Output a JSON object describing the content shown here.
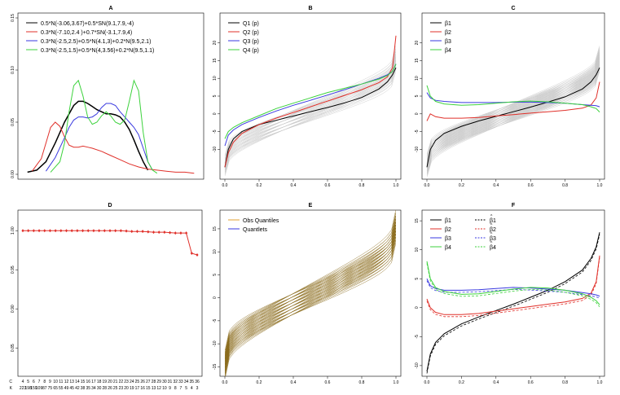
{
  "figure": {
    "title": "Six-panel figure A-F"
  },
  "chart_data": [
    {
      "panel": "A",
      "type": "line",
      "title": "A",
      "xlim": [
        -15,
        23
      ],
      "ylim": [
        0,
        0.15
      ],
      "xticks": [],
      "yticks": [
        "0.00",
        "0.05",
        "0.10",
        "0.15"
      ],
      "legend": [
        {
          "label": "0.5*N(-3.06,3.67)+0.5*SN(9.1,7.9,-4)",
          "color": "#000000"
        },
        {
          "label": "0.3*N(-7.10,2.4 )+0.7*SN(-3.1,7.9,4)",
          "color": "#e0302a"
        },
        {
          "label": "0.3*N(-2.5,2.5)+0.5*N(4.1,3)+0.2*N(9.5,2.1)",
          "color": "#3a3ae0"
        },
        {
          "label": "0.3*N(-2.5,1.5)+0.5*N(4,3.56)+0.2*N(9.5,1.1)",
          "color": "#3cd23c"
        }
      ],
      "series": [
        {
          "name": "black",
          "color": "#000000",
          "x": [
            -14,
            -12,
            -10,
            -8,
            -6,
            -4,
            -3,
            -2,
            -1,
            0,
            1,
            2,
            3,
            4,
            5,
            6,
            7,
            8,
            9,
            10,
            11,
            12
          ],
          "y": [
            0.002,
            0.004,
            0.012,
            0.03,
            0.05,
            0.066,
            0.07,
            0.07,
            0.068,
            0.065,
            0.062,
            0.06,
            0.058,
            0.058,
            0.057,
            0.055,
            0.05,
            0.043,
            0.033,
            0.022,
            0.012,
            0.004
          ]
        },
        {
          "name": "red",
          "color": "#e0302a",
          "x": [
            -13,
            -11,
            -10,
            -9,
            -8,
            -7,
            -6,
            -5,
            -4,
            -3,
            -2,
            -1,
            0,
            2,
            4,
            6,
            8,
            10,
            12,
            14,
            16,
            18,
            20,
            22
          ],
          "y": [
            0.003,
            0.015,
            0.03,
            0.045,
            0.05,
            0.046,
            0.036,
            0.028,
            0.026,
            0.026,
            0.027,
            0.026,
            0.025,
            0.022,
            0.018,
            0.014,
            0.01,
            0.007,
            0.005,
            0.004,
            0.003,
            0.002,
            0.002,
            0.001
          ]
        },
        {
          "name": "blue",
          "color": "#3a3ae0",
          "x": [
            -10,
            -8,
            -6,
            -5,
            -4,
            -3,
            -2,
            -1,
            0,
            1,
            2,
            3,
            4,
            5,
            6,
            7,
            8,
            9,
            10,
            11,
            12,
            13
          ],
          "y": [
            0.003,
            0.016,
            0.035,
            0.045,
            0.052,
            0.055,
            0.055,
            0.054,
            0.055,
            0.058,
            0.064,
            0.068,
            0.068,
            0.066,
            0.06,
            0.055,
            0.05,
            0.045,
            0.038,
            0.025,
            0.012,
            0.004
          ]
        },
        {
          "name": "green",
          "color": "#3cd23c",
          "x": [
            -9,
            -7,
            -6,
            -5,
            -4,
            -3,
            -2,
            -1,
            0,
            1,
            2,
            3,
            4,
            5,
            6,
            7,
            8,
            9,
            10,
            11,
            12,
            13,
            14
          ],
          "y": [
            0.002,
            0.012,
            0.03,
            0.06,
            0.085,
            0.09,
            0.075,
            0.055,
            0.048,
            0.05,
            0.056,
            0.06,
            0.056,
            0.05,
            0.048,
            0.052,
            0.07,
            0.09,
            0.08,
            0.04,
            0.012,
            0.004,
            0.001
          ]
        }
      ]
    },
    {
      "panel": "B",
      "type": "line",
      "title": "B",
      "xlim": [
        0,
        1
      ],
      "ylim": [
        -17,
        27
      ],
      "xticks": [
        "0.0",
        "0.2",
        "0.4",
        "0.6",
        "0.8",
        "1.0"
      ],
      "yticks": [
        "-10",
        "-5",
        "0",
        "5",
        "10",
        "15",
        "20"
      ],
      "legend": [
        {
          "label": "Q1 (p)",
          "color": "#000000"
        },
        {
          "label": "Q2 (p)",
          "color": "#e0302a"
        },
        {
          "label": "Q3 (p)",
          "color": "#3a3ae0"
        },
        {
          "label": "Q4 (p)",
          "color": "#3cd23c"
        }
      ],
      "background": {
        "color": "#c8c8c8",
        "count": 30
      },
      "series": [
        {
          "name": "Q1",
          "color": "#000000",
          "x": [
            0,
            0.02,
            0.05,
            0.1,
            0.2,
            0.3,
            0.4,
            0.5,
            0.6,
            0.7,
            0.8,
            0.9,
            0.95,
            0.98,
            1.0
          ],
          "y": [
            -15,
            -10,
            -7,
            -5,
            -3,
            -1.8,
            -0.6,
            0.6,
            1.8,
            3.1,
            4.6,
            7,
            9,
            11,
            13
          ]
        },
        {
          "name": "Q2",
          "color": "#e0302a",
          "x": [
            0,
            0.02,
            0.05,
            0.1,
            0.2,
            0.3,
            0.4,
            0.5,
            0.6,
            0.7,
            0.8,
            0.9,
            0.95,
            0.98,
            1.0
          ],
          "y": [
            -15,
            -11,
            -8,
            -5.5,
            -3,
            -1.2,
            0.4,
            2,
            3.6,
            5.2,
            6.8,
            8.8,
            10.4,
            13,
            22
          ]
        },
        {
          "name": "Q3",
          "color": "#3a3ae0",
          "x": [
            0,
            0.02,
            0.05,
            0.1,
            0.2,
            0.3,
            0.4,
            0.5,
            0.6,
            0.7,
            0.8,
            0.9,
            0.95,
            0.98,
            1.0
          ],
          "y": [
            -9,
            -6,
            -4.5,
            -3,
            -1,
            0.8,
            2.4,
            3.8,
            5.3,
            6.8,
            8.4,
            10,
            11,
            12,
            14
          ]
        },
        {
          "name": "Q4",
          "color": "#3cd23c",
          "x": [
            0,
            0.02,
            0.05,
            0.1,
            0.2,
            0.3,
            0.4,
            0.5,
            0.6,
            0.7,
            0.8,
            0.9,
            0.95,
            0.98,
            1.0
          ],
          "y": [
            -7,
            -5,
            -3.8,
            -2.5,
            -0.5,
            1.5,
            3,
            4.5,
            6,
            7.2,
            8.4,
            9.8,
            10.8,
            12,
            14
          ]
        }
      ]
    },
    {
      "panel": "C",
      "type": "line",
      "title": "C",
      "xlim": [
        0,
        1
      ],
      "ylim": [
        -17,
        27
      ],
      "xticks": [
        "0.0",
        "0.2",
        "0.4",
        "0.6",
        "0.8",
        "1.0"
      ],
      "yticks": [
        "-10",
        "-5",
        "0",
        "5",
        "10",
        "15",
        "20"
      ],
      "legend": [
        {
          "label": "β1",
          "color": "#000000"
        },
        {
          "label": "β2",
          "color": "#e0302a"
        },
        {
          "label": "β3",
          "color": "#3a3ae0"
        },
        {
          "label": "β4",
          "color": "#3cd23c"
        }
      ],
      "background": {
        "color": "#c8c8c8",
        "count": 60
      },
      "series": [
        {
          "name": "β1",
          "color": "#000000",
          "x": [
            0,
            0.02,
            0.05,
            0.1,
            0.2,
            0.3,
            0.4,
            0.5,
            0.6,
            0.7,
            0.8,
            0.9,
            0.95,
            0.98,
            1.0
          ],
          "y": [
            -15,
            -10,
            -7.5,
            -5.5,
            -3.5,
            -2,
            -0.7,
            0.6,
            1.9,
            3.3,
            4.8,
            7,
            9,
            11,
            13
          ]
        },
        {
          "name": "β2",
          "color": "#e0302a",
          "x": [
            0,
            0.02,
            0.05,
            0.1,
            0.2,
            0.3,
            0.4,
            0.5,
            0.6,
            0.7,
            0.8,
            0.9,
            0.95,
            0.98,
            1.0
          ],
          "y": [
            -2,
            0,
            -0.8,
            -1.2,
            -1.2,
            -1,
            -0.6,
            -0.2,
            0.2,
            0.6,
            1,
            1.6,
            2.5,
            4.5,
            9
          ]
        },
        {
          "name": "β3",
          "color": "#3a3ae0",
          "x": [
            0,
            0.02,
            0.05,
            0.1,
            0.2,
            0.3,
            0.4,
            0.5,
            0.6,
            0.7,
            0.8,
            0.9,
            0.95,
            0.98,
            1.0
          ],
          "y": [
            6,
            4.5,
            3.8,
            3.5,
            3.2,
            3.2,
            3.2,
            3.3,
            3.3,
            3.2,
            3,
            2.6,
            2.4,
            2.3,
            2
          ]
        },
        {
          "name": "β4",
          "color": "#3cd23c",
          "x": [
            0,
            0.02,
            0.05,
            0.1,
            0.2,
            0.3,
            0.4,
            0.5,
            0.6,
            0.7,
            0.8,
            0.9,
            0.95,
            0.98,
            1.0
          ],
          "y": [
            8,
            5,
            3.5,
            2.8,
            2.4,
            2.6,
            3,
            3.4,
            3.6,
            3.4,
            3,
            2.6,
            2,
            1.5,
            0.5
          ]
        }
      ]
    },
    {
      "panel": "D",
      "type": "line",
      "title": "D",
      "ylim": [
        0.82,
        1.02
      ],
      "xticks": [],
      "yticks": [
        "0.85",
        "0.90",
        "0.95",
        "1.00"
      ],
      "series": [
        {
          "name": "ratio",
          "color": "#e0302a",
          "x": [
            1,
            2,
            3,
            4,
            5,
            6,
            7,
            8,
            9,
            10,
            11,
            12,
            13,
            14,
            15,
            16,
            17,
            18,
            19,
            20,
            21,
            22,
            23,
            24,
            25,
            26,
            27,
            28,
            29,
            30,
            31,
            32,
            33
          ],
          "y": [
            1.0,
            1.0,
            1.0,
            1.0,
            1.0,
            1.0,
            1.0,
            1.0,
            1.0,
            1.0,
            1.0,
            1.0,
            1.0,
            1.0,
            1.0,
            1.0,
            1.0,
            1.0,
            1.0,
            0.9995,
            0.999,
            0.999,
            0.999,
            0.9985,
            0.998,
            0.998,
            0.998,
            0.9975,
            0.997,
            0.997,
            0.997,
            0.971,
            0.969
          ]
        }
      ],
      "bottom_rows": [
        {
          "name": "C",
          "color": "#3a3ae0",
          "values": [
            "4",
            "5",
            "6",
            "7",
            "8",
            "9",
            "10",
            "11",
            "12",
            "13",
            "14",
            "15",
            "16",
            "17",
            "18",
            "19",
            "20",
            "21",
            "22",
            "23",
            "24",
            "25",
            "26",
            "27",
            "28",
            "29",
            "30",
            "31",
            "32",
            "33",
            "34",
            "35",
            "36"
          ]
        },
        {
          "name": "K",
          "color": "#3a3ae0",
          "values": [
            "223",
            "198",
            "159",
            "109",
            "87",
            "75",
            "65",
            "55",
            "49",
            "45",
            "42",
            "38",
            "35",
            "34",
            "30",
            "28",
            "26",
            "25",
            "23",
            "20",
            "19",
            "17",
            "16",
            "15",
            "13",
            "12",
            "10",
            "9",
            "8",
            "7",
            "5",
            "4",
            "3"
          ]
        }
      ]
    },
    {
      "panel": "E",
      "type": "line",
      "title": "E",
      "xlim": [
        0,
        1
      ],
      "ylim": [
        -16,
        18
      ],
      "xticks": [
        "0.0",
        "0.2",
        "0.4",
        "0.6",
        "0.8",
        "1.0"
      ],
      "yticks": [
        "-15",
        "-10",
        "-5",
        "0",
        "5",
        "10",
        "15"
      ],
      "legend": [
        {
          "label": "Obs Quantiles",
          "color": "#e0a030"
        },
        {
          "label": "Quantlets",
          "color": "#3a3ae0"
        }
      ],
      "background": {
        "color": "#8a6a1a",
        "count": 40
      }
    },
    {
      "panel": "F",
      "type": "line",
      "title": "F",
      "xlim": [
        0,
        1
      ],
      "ylim": [
        -11,
        16
      ],
      "xticks": [
        "0.0",
        "0.2",
        "0.4",
        "0.6",
        "0.8",
        "1.0"
      ],
      "yticks": [
        "-10",
        "-5",
        "0",
        "5",
        "10",
        "15"
      ],
      "legend": [
        {
          "label": "β1",
          "color": "#000000"
        },
        {
          "label": "β2",
          "color": "#e0302a"
        },
        {
          "label": "β3",
          "color": "#3a3ae0"
        },
        {
          "label": "β4",
          "color": "#3cd23c"
        },
        {
          "label": "β1",
          "color": "#000000",
          "hat": true
        },
        {
          "label": "β2",
          "color": "#e0302a",
          "hat": true
        },
        {
          "label": "β3",
          "color": "#3a3ae0",
          "hat": true
        },
        {
          "label": "β4",
          "color": "#3cd23c",
          "hat": true
        }
      ],
      "series": [
        {
          "name": "β1",
          "color": "#000000",
          "x": [
            0,
            0.02,
            0.05,
            0.1,
            0.2,
            0.3,
            0.4,
            0.5,
            0.6,
            0.7,
            0.8,
            0.9,
            0.95,
            0.98,
            1.0
          ],
          "y": [
            -11,
            -8,
            -6,
            -4.5,
            -2.8,
            -1.6,
            -0.5,
            0.6,
            1.8,
            3,
            4.5,
            6.5,
            8.5,
            10.5,
            13
          ]
        },
        {
          "name": "β2",
          "color": "#e0302a",
          "x": [
            0,
            0.02,
            0.05,
            0.1,
            0.2,
            0.3,
            0.4,
            0.5,
            0.6,
            0.7,
            0.8,
            0.9,
            0.95,
            0.98,
            1.0
          ],
          "y": [
            1.5,
            0,
            -0.8,
            -1.2,
            -1.2,
            -1,
            -0.6,
            -0.2,
            0.2,
            0.6,
            1,
            1.6,
            2.5,
            4.5,
            9
          ]
        },
        {
          "name": "β3",
          "color": "#3a3ae0",
          "x": [
            0,
            0.02,
            0.05,
            0.1,
            0.2,
            0.3,
            0.4,
            0.5,
            0.6,
            0.7,
            0.8,
            0.9,
            0.95,
            0.98,
            1.0
          ],
          "y": [
            5,
            3.8,
            3.3,
            3,
            3,
            3.1,
            3.3,
            3.5,
            3.4,
            3.2,
            3,
            2.6,
            2.4,
            2.2,
            2
          ]
        },
        {
          "name": "β4",
          "color": "#3cd23c",
          "x": [
            0,
            0.02,
            0.05,
            0.1,
            0.2,
            0.3,
            0.4,
            0.5,
            0.6,
            0.7,
            0.8,
            0.9,
            0.95,
            0.98,
            1.0
          ],
          "y": [
            8,
            5,
            3.5,
            2.8,
            2.3,
            2.4,
            2.8,
            3.2,
            3.5,
            3.4,
            3,
            2.4,
            1.8,
            1.2,
            0.5
          ]
        }
      ]
    }
  ]
}
